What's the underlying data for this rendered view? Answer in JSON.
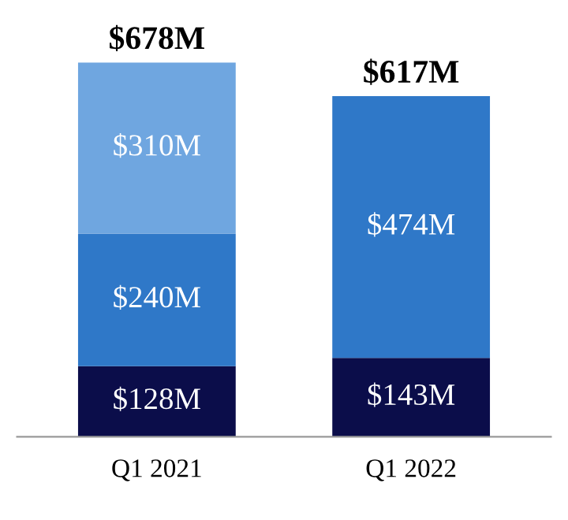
{
  "chart_data": {
    "type": "bar",
    "stacked": true,
    "categories": [
      "Q1 2021",
      "Q1 2022"
    ],
    "series": [
      {
        "color": "#0b0d4a",
        "values": [
          128,
          143
        ],
        "value_labels": [
          "$128M",
          "$143M"
        ]
      },
      {
        "color": "#2f78c8",
        "values": [
          240,
          474
        ],
        "value_labels": [
          "$240M",
          "$474M"
        ]
      },
      {
        "color": "#6fa6e0",
        "values": [
          310,
          null
        ],
        "value_labels": [
          "$310M",
          null
        ]
      }
    ],
    "totals": [
      "$678M",
      "$617M"
    ],
    "grid": false,
    "legend": false
  }
}
